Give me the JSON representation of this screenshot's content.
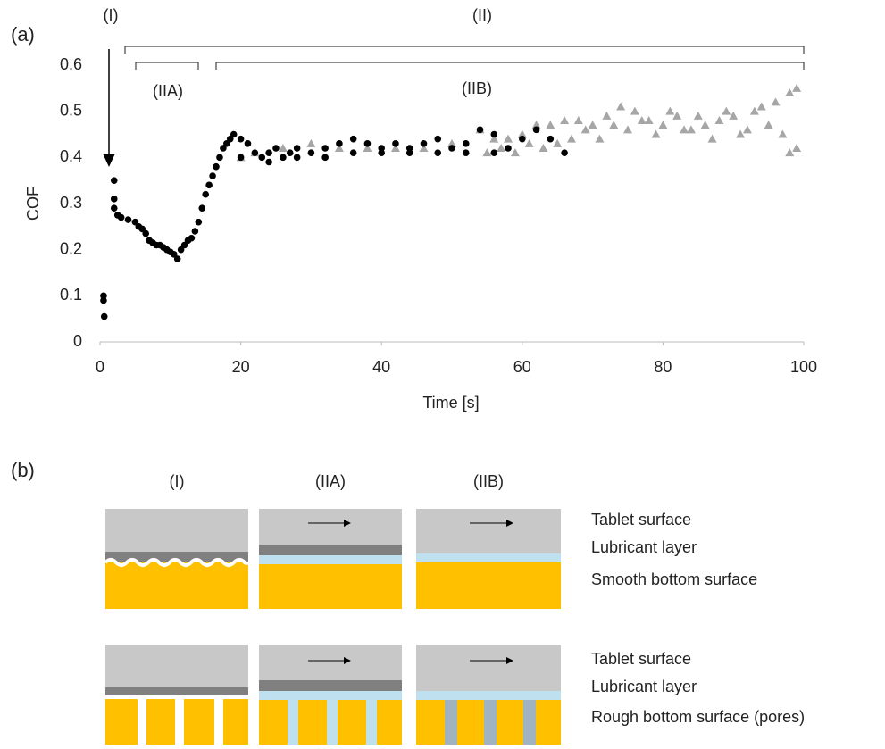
{
  "chart_data": {
    "type": "scatter",
    "panel_label": "(a)",
    "annotations": [
      "(I)",
      "(II)",
      "(IIA)",
      "(IIB)"
    ],
    "x_label": "Time [s]",
    "y_label": "COF",
    "xlim": [
      0,
      100
    ],
    "xticks": [
      0,
      20,
      40,
      60,
      80,
      100
    ],
    "ylim": [
      0,
      0.6
    ],
    "yticks": [
      0,
      0.1,
      0.2,
      0.3,
      0.4,
      0.5,
      0.6
    ],
    "grid": false,
    "series": [
      {
        "name": null,
        "marker": "circle",
        "color": "#000000",
        "x": [
          0.5,
          0.5,
          0.6,
          2,
          2,
          2,
          2.5,
          3,
          4,
          5,
          5.5,
          6,
          6.5,
          7,
          7.5,
          8,
          8.5,
          9,
          9.5,
          10,
          10.5,
          11,
          11.5,
          12,
          12.5,
          13,
          13.5,
          14,
          14.5,
          15,
          15.5,
          16,
          16.5,
          17,
          17.5,
          18,
          18.5,
          19,
          20,
          21,
          22,
          23,
          24,
          25,
          26,
          27,
          28,
          30,
          32,
          34,
          36,
          38,
          40,
          42,
          44,
          46,
          48,
          50,
          52,
          54,
          56,
          58,
          60,
          62,
          64,
          66,
          20,
          24,
          28,
          32,
          36,
          40,
          44,
          48,
          52,
          56
        ],
        "values": [
          0.1,
          0.09,
          0.055,
          0.35,
          0.31,
          0.29,
          0.275,
          0.27,
          0.265,
          0.26,
          0.25,
          0.245,
          0.235,
          0.22,
          0.215,
          0.21,
          0.21,
          0.205,
          0.2,
          0.195,
          0.19,
          0.18,
          0.2,
          0.21,
          0.22,
          0.225,
          0.24,
          0.26,
          0.29,
          0.32,
          0.34,
          0.36,
          0.38,
          0.4,
          0.42,
          0.43,
          0.44,
          0.45,
          0.44,
          0.43,
          0.41,
          0.4,
          0.41,
          0.42,
          0.4,
          0.41,
          0.42,
          0.41,
          0.42,
          0.43,
          0.44,
          0.43,
          0.42,
          0.43,
          0.42,
          0.43,
          0.44,
          0.42,
          0.43,
          0.46,
          0.45,
          0.42,
          0.44,
          0.46,
          0.44,
          0.41,
          0.4,
          0.39,
          0.4,
          0.4,
          0.41,
          0.41,
          0.41,
          0.41,
          0.41,
          0.41
        ]
      },
      {
        "name": null,
        "marker": "triangle",
        "color": "#a6a6a6",
        "x": [
          20,
          22,
          26,
          30,
          34,
          38,
          42,
          46,
          50,
          54,
          56,
          58,
          60,
          62,
          64,
          66,
          68,
          70,
          72,
          74,
          76,
          78,
          80,
          82,
          84,
          86,
          88,
          90,
          92,
          94,
          96,
          98,
          99,
          99,
          98,
          97,
          95,
          93,
          91,
          89,
          87,
          85,
          83,
          81,
          79,
          77,
          75,
          73,
          71,
          69,
          67,
          65,
          63,
          61,
          59,
          57,
          55
        ],
        "values": [
          0.4,
          0.41,
          0.42,
          0.43,
          0.42,
          0.42,
          0.42,
          0.42,
          0.43,
          0.46,
          0.44,
          0.44,
          0.45,
          0.47,
          0.47,
          0.48,
          0.48,
          0.47,
          0.49,
          0.51,
          0.5,
          0.48,
          0.47,
          0.49,
          0.46,
          0.47,
          0.48,
          0.49,
          0.46,
          0.51,
          0.52,
          0.54,
          0.55,
          0.42,
          0.41,
          0.45,
          0.47,
          0.5,
          0.45,
          0.5,
          0.44,
          0.49,
          0.46,
          0.5,
          0.45,
          0.48,
          0.46,
          0.47,
          0.44,
          0.46,
          0.44,
          0.43,
          0.42,
          0.43,
          0.41,
          0.42,
          0.41
        ]
      }
    ]
  },
  "diagram": {
    "panel_label": "(b)",
    "columns": [
      "(I)",
      "(IIA)",
      "(IIB)"
    ],
    "rows": [
      [
        "Tablet surface",
        "Lubricant layer",
        "Smooth bottom surface"
      ],
      [
        "Tablet surface",
        "Lubricant layer",
        "Rough bottom surface (pores)"
      ]
    ]
  }
}
